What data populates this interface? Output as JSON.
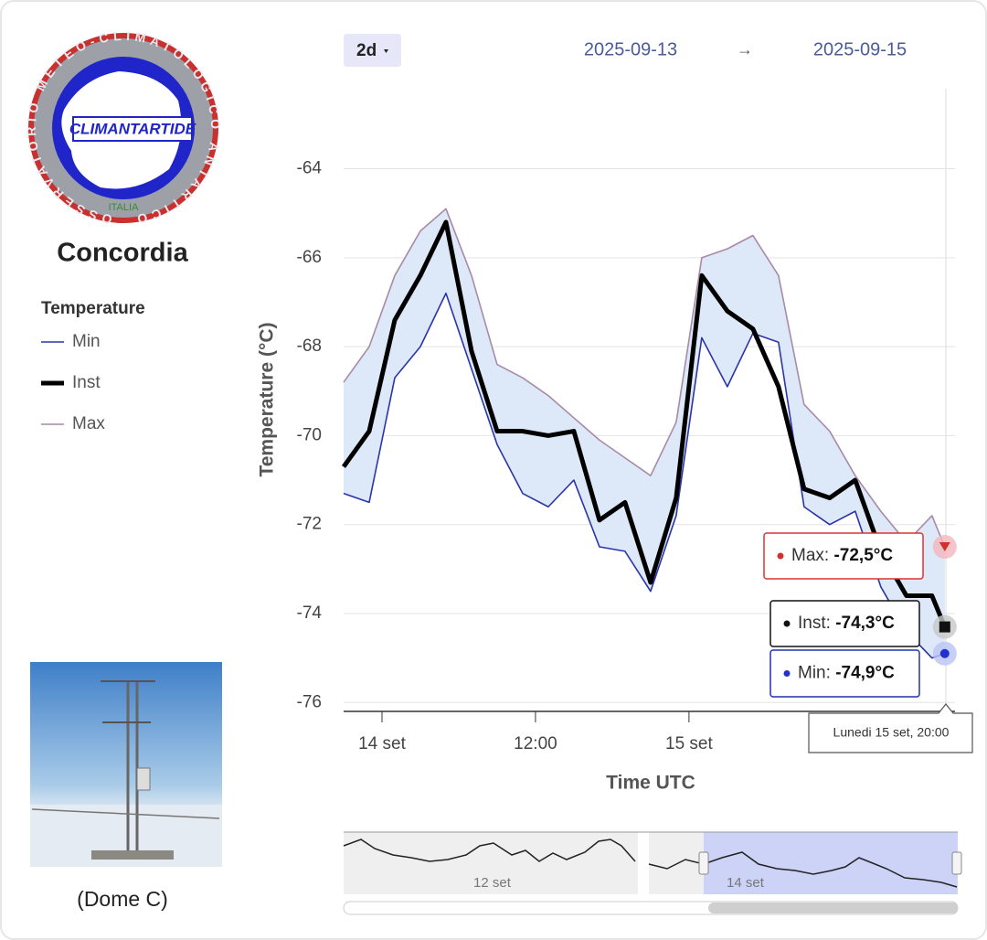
{
  "header": {
    "range": "2d",
    "date_from": "2025-09-13",
    "arrow": "→",
    "date_to": "2025-09-15"
  },
  "sidebar": {
    "logo_ring": "OSSERVATORIO METEO-CLIMATOLOGICO ANTARTICO",
    "logo_center": "CLIMANTARTIDE",
    "logo_country": "ITALIA",
    "station": "Concordia",
    "legend_title": "Temperature",
    "photo_caption": "(Dome C)"
  },
  "chart_data": {
    "type": "line",
    "y_label": "Temperature (°C)",
    "x_label": "Time UTC",
    "x": [
      "2025-09-13T21:00",
      "2025-09-13T23:00",
      "2025-09-14T01:00",
      "2025-09-14T03:00",
      "2025-09-14T05:00",
      "2025-09-14T07:00",
      "2025-09-14T09:00",
      "2025-09-14T11:00",
      "2025-09-14T13:00",
      "2025-09-14T15:00",
      "2025-09-14T17:00",
      "2025-09-14T19:00",
      "2025-09-14T21:00",
      "2025-09-14T23:00",
      "2025-09-15T01:00",
      "2025-09-15T03:00",
      "2025-09-15T05:00",
      "2025-09-15T07:00",
      "2025-09-15T09:00",
      "2025-09-15T11:00",
      "2025-09-15T13:00",
      "2025-09-15T15:00",
      "2025-09-15T17:00",
      "2025-09-15T19:00",
      "2025-09-15T20:00"
    ],
    "series": [
      {
        "name": "Min",
        "color": "#2b35a8",
        "values": [
          -71.3,
          -71.5,
          -68.7,
          -68.0,
          -66.8,
          -68.5,
          -70.2,
          -71.3,
          -71.6,
          -71.0,
          -72.5,
          -72.6,
          -73.5,
          -71.8,
          -67.8,
          -68.9,
          -67.7,
          -67.9,
          -71.6,
          -72.0,
          -71.7,
          -73.4,
          -74.4,
          -75.0,
          -74.9
        ]
      },
      {
        "name": "Inst",
        "color": "#000000",
        "values": [
          -70.7,
          -69.9,
          -67.4,
          -66.4,
          -65.2,
          -68.1,
          -69.9,
          -69.9,
          -70.0,
          -69.9,
          -71.9,
          -71.5,
          -73.3,
          -71.4,
          -66.4,
          -67.2,
          -67.6,
          -68.9,
          -71.2,
          -71.4,
          -71.0,
          -72.6,
          -73.6,
          -73.6,
          -74.3
        ]
      },
      {
        "name": "Max",
        "color": "#a98aa6",
        "values": [
          -68.8,
          -68.0,
          -66.4,
          -65.4,
          -64.9,
          -66.4,
          -68.4,
          -68.7,
          -69.1,
          -69.6,
          -70.1,
          -70.5,
          -70.9,
          -69.7,
          -66.0,
          -65.8,
          -65.5,
          -66.4,
          -69.3,
          -69.9,
          -70.9,
          -71.7,
          -72.4,
          -71.8,
          -72.5
        ]
      }
    ],
    "band_color": "#dde8f8",
    "ylim": [
      -76.2,
      -62.2
    ],
    "yticks": [
      -76,
      -74,
      -72,
      -70,
      -68,
      -66,
      -64
    ],
    "grid": true,
    "xlim": [
      "2025-09-13T21:00",
      "2025-09-15T20:48"
    ],
    "xticks": [
      {
        "value": "2025-09-14T00:00",
        "label": "14 set"
      },
      {
        "value": "2025-09-14T12:00",
        "label": "12:00"
      },
      {
        "value": "2025-09-15T00:00",
        "label": "15 set"
      }
    ]
  },
  "tooltip": {
    "date": "Lunedi 15 set, 20:00",
    "items": [
      {
        "label": "Max:",
        "value_label": "-72,5°C"
      },
      {
        "label": "Inst:",
        "value_label": "-74,3°C"
      },
      {
        "label": "Min:",
        "value_label": "-74,9°C"
      }
    ]
  },
  "navigator": {
    "labels": [
      "12 set",
      "14 set"
    ]
  }
}
